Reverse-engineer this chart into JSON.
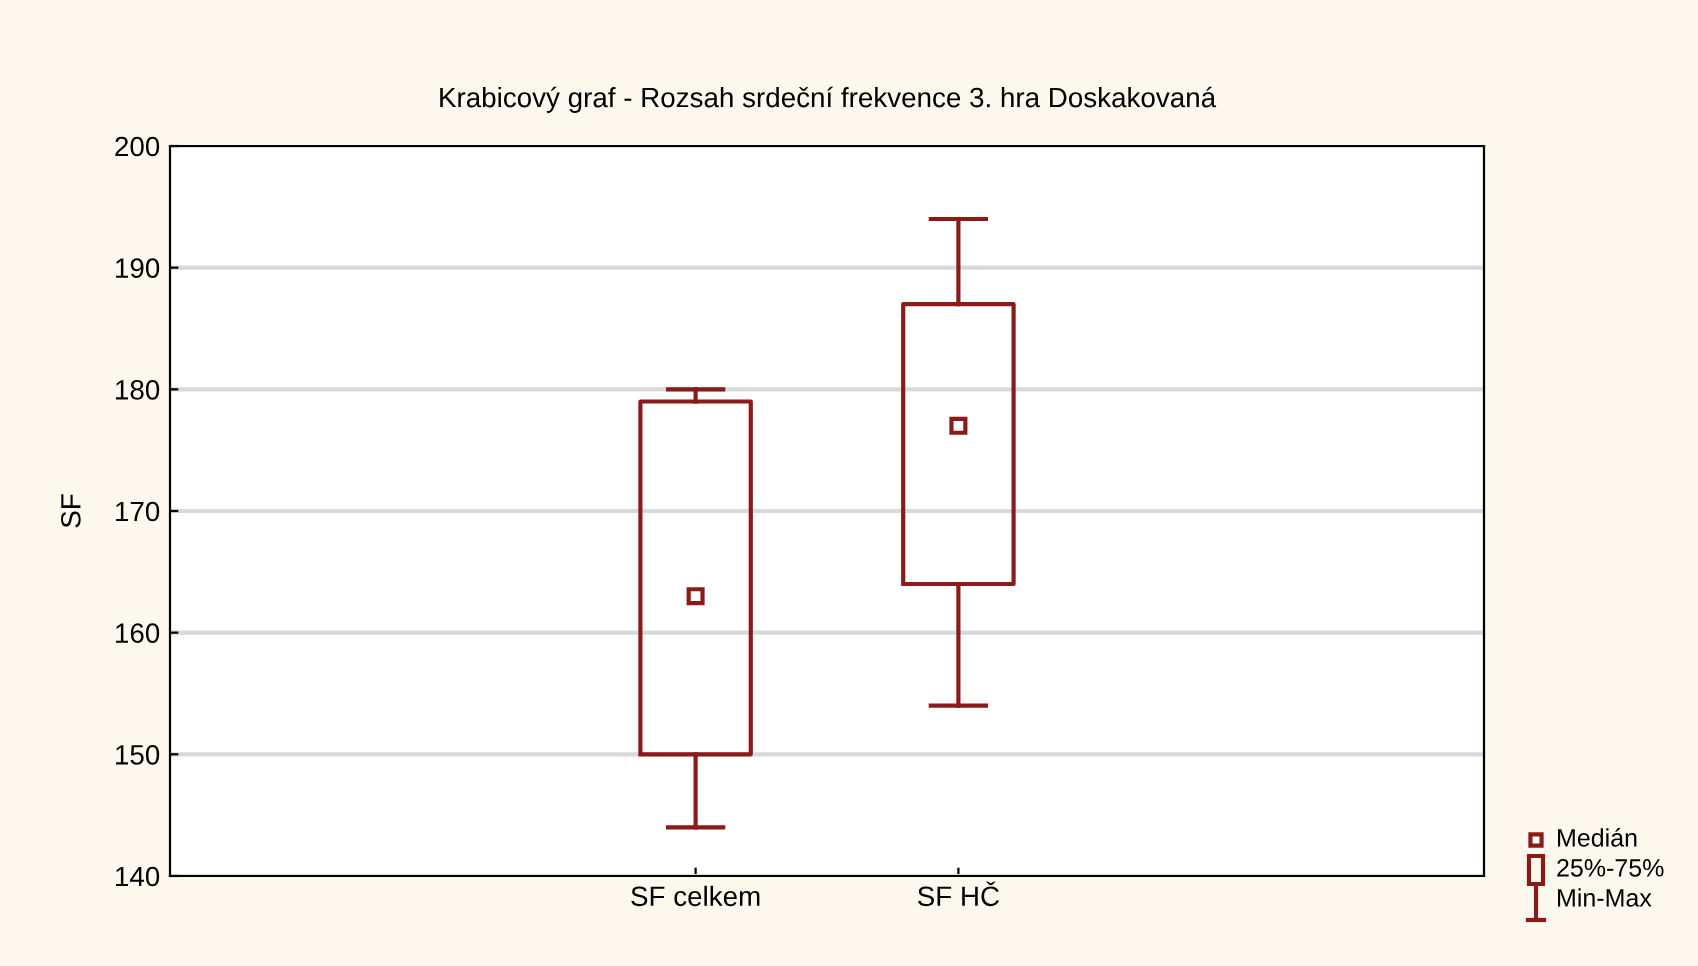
{
  "chart_data": {
    "type": "box",
    "title": "Krabicový graf - Rozsah srdeční frekvence 3. hra Doskakovaná",
    "ylabel": "SF",
    "categories": [
      "SF celkem",
      "SF HČ"
    ],
    "series": [
      {
        "color": "#8b1a1a",
        "boxes": [
          {
            "low": 144,
            "q1": 150,
            "median": 163,
            "q3": 179,
            "high": 180
          },
          {
            "low": 154,
            "q1": 164,
            "median": 177,
            "q3": 187,
            "high": 194
          }
        ]
      }
    ],
    "ylim": [
      140,
      200
    ],
    "yticks": [
      140,
      150,
      160,
      170,
      180,
      190,
      200
    ],
    "grid": "y",
    "marker": "square",
    "annotations": [
      "Medián",
      "25%-75%",
      "Min-Max"
    ]
  }
}
